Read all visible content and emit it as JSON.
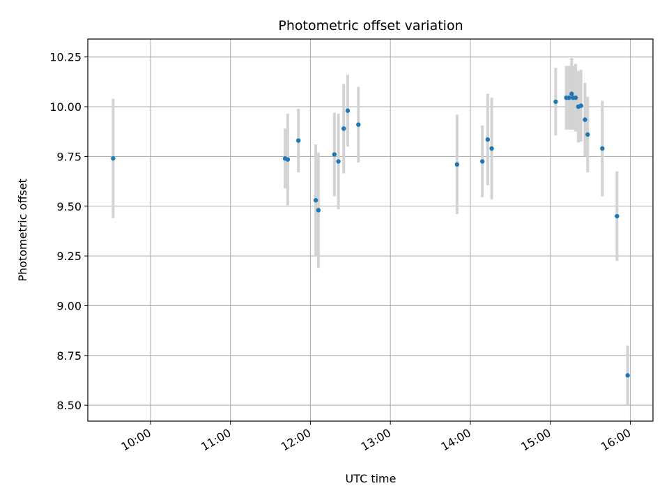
{
  "chart_data": {
    "type": "scatter",
    "title": "Photometric offset variation",
    "xlabel": "UTC time",
    "ylabel": "Photometric offset",
    "x_ticks": [
      "10:00",
      "11:00",
      "12:00",
      "13:00",
      "14:00",
      "15:00",
      "16:00"
    ],
    "y_ticks": [
      "8.50",
      "8.75",
      "9.00",
      "9.25",
      "9.50",
      "9.75",
      "10.00",
      "10.25"
    ],
    "xlim": [
      "09:13",
      "16:17"
    ],
    "ylim": [
      8.42,
      10.34
    ],
    "grid": true,
    "colors": {
      "point": "#1f77b4",
      "errorbar": "#d3d3d3",
      "grid": "#b0b0b0"
    },
    "points": [
      {
        "x": "09:32",
        "y": 9.74,
        "err": 0.3
      },
      {
        "x": "11:41",
        "y": 9.74,
        "err": 0.15
      },
      {
        "x": "11:43",
        "y": 9.735,
        "err": 0.23
      },
      {
        "x": "11:51",
        "y": 9.83,
        "err": 0.16
      },
      {
        "x": "12:04",
        "y": 9.53,
        "err": 0.28
      },
      {
        "x": "12:06",
        "y": 9.48,
        "err": 0.29
      },
      {
        "x": "12:18",
        "y": 9.76,
        "err": 0.21
      },
      {
        "x": "12:21",
        "y": 9.725,
        "err": 0.24
      },
      {
        "x": "12:25",
        "y": 9.89,
        "err": 0.225
      },
      {
        "x": "12:28",
        "y": 9.98,
        "err": 0.18
      },
      {
        "x": "12:36",
        "y": 9.91,
        "err": 0.19
      },
      {
        "x": "13:50",
        "y": 9.71,
        "err": 0.25
      },
      {
        "x": "14:09",
        "y": 9.725,
        "err": 0.18
      },
      {
        "x": "14:13",
        "y": 9.835,
        "err": 0.23
      },
      {
        "x": "14:16",
        "y": 9.79,
        "err": 0.255
      },
      {
        "x": "15:04",
        "y": 10.025,
        "err": 0.17
      },
      {
        "x": "15:12",
        "y": 10.045,
        "err": 0.16
      },
      {
        "x": "15:14",
        "y": 10.045,
        "err": 0.16
      },
      {
        "x": "15:16",
        "y": 10.065,
        "err": 0.18
      },
      {
        "x": "15:17",
        "y": 10.045,
        "err": 0.16
      },
      {
        "x": "15:19",
        "y": 10.045,
        "err": 0.17
      },
      {
        "x": "15:21",
        "y": 10.0,
        "err": 0.18
      },
      {
        "x": "15:23",
        "y": 10.005,
        "err": 0.18
      },
      {
        "x": "15:26",
        "y": 9.935,
        "err": 0.185
      },
      {
        "x": "15:28",
        "y": 9.86,
        "err": 0.19
      },
      {
        "x": "15:39",
        "y": 9.79,
        "err": 0.24
      },
      {
        "x": "15:50",
        "y": 9.45,
        "err": 0.225
      },
      {
        "x": "15:58",
        "y": 8.65,
        "err": 0.15
      }
    ]
  }
}
